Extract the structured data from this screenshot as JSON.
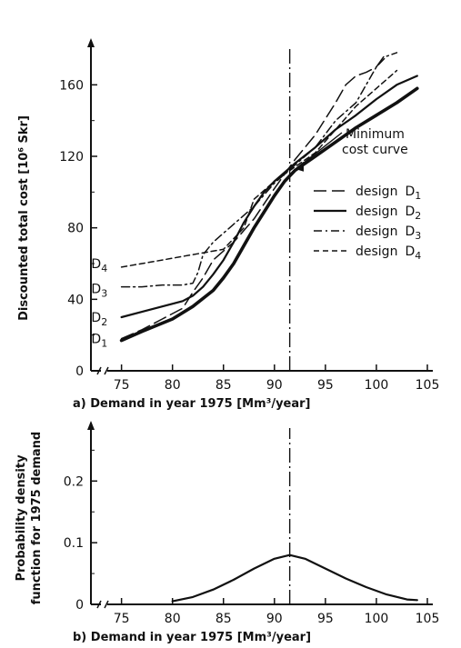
{
  "chart_data": [
    {
      "panel": "a",
      "type": "line",
      "xlabel": "a) Demand in year 1975 [Mm³/year]",
      "ylabel": "Discounted total cost [10⁶ Skr]",
      "xlim": [
        72,
        105
      ],
      "ylim": [
        0,
        180
      ],
      "x_ticks": [
        "75",
        "80",
        "85",
        "90",
        "95",
        "100",
        "105"
      ],
      "y_ticks": [
        "0",
        "40",
        "80",
        "120",
        "160"
      ],
      "axis_break": true,
      "vertical_marker_x": 91.5,
      "annotation": {
        "text_line1": "Minimum",
        "text_line2": "cost curve"
      },
      "legend_position": "right",
      "legend": [
        {
          "label": "design",
          "sub": "D",
          "index": "1",
          "style": "long-dash"
        },
        {
          "label": "design",
          "sub": "D",
          "index": "2",
          "style": "solid"
        },
        {
          "label": "design",
          "sub": "D",
          "index": "3",
          "style": "dash-dot"
        },
        {
          "label": "design",
          "sub": "D",
          "index": "4",
          "style": "short-dash"
        }
      ],
      "curve_labels": [
        {
          "main": "D",
          "sub": "1",
          "series": "D1"
        },
        {
          "main": "D",
          "sub": "2",
          "series": "D2"
        },
        {
          "main": "D",
          "sub": "3",
          "series": "D3"
        },
        {
          "main": "D",
          "sub": "4",
          "series": "D4"
        }
      ],
      "series": [
        {
          "id": "min",
          "style": "bold",
          "points": [
            [
              75,
              17
            ],
            [
              77,
              22
            ],
            [
              80,
              29
            ],
            [
              82,
              36
            ],
            [
              84,
              45
            ],
            [
              85,
              52
            ],
            [
              86,
              60
            ],
            [
              87,
              70
            ],
            [
              88,
              80
            ],
            [
              89,
              89
            ],
            [
              90,
              98
            ],
            [
              91,
              106
            ],
            [
              92,
              112
            ],
            [
              94,
              120
            ],
            [
              96,
              128
            ],
            [
              98,
              136
            ],
            [
              100,
              143
            ],
            [
              102,
              150
            ],
            [
              104,
              158
            ]
          ]
        },
        {
          "id": "D1",
          "style": "long-dash",
          "points": [
            [
              75,
              18
            ],
            [
              77,
              23
            ],
            [
              79,
              29
            ],
            [
              81,
              35
            ],
            [
              82,
              44
            ],
            [
              83,
              52
            ],
            [
              84,
              62
            ],
            [
              86,
              72
            ],
            [
              88,
              85
            ],
            [
              90,
              102
            ],
            [
              92,
              118
            ],
            [
              94,
              132
            ],
            [
              96,
              150
            ],
            [
              97,
              160
            ],
            [
              98,
              165
            ],
            [
              99,
              167
            ],
            [
              100,
              170
            ],
            [
              101,
              178
            ]
          ]
        },
        {
          "id": "D2",
          "style": "solid",
          "points": [
            [
              75,
              30
            ],
            [
              77,
              33
            ],
            [
              79,
              36
            ],
            [
              81,
              39
            ],
            [
              82,
              42
            ],
            [
              83,
              47
            ],
            [
              84,
              54
            ],
            [
              85,
              62
            ],
            [
              86,
              72
            ],
            [
              87,
              83
            ],
            [
              88,
              92
            ],
            [
              89,
              100
            ],
            [
              90,
              106
            ],
            [
              91,
              111
            ],
            [
              92,
              116
            ],
            [
              94,
              125
            ],
            [
              96,
              135
            ],
            [
              98,
              143
            ],
            [
              100,
              152
            ],
            [
              102,
              160
            ],
            [
              104,
              165
            ]
          ]
        },
        {
          "id": "D3",
          "style": "dash-dot",
          "points": [
            [
              75,
              47
            ],
            [
              77,
              47
            ],
            [
              79,
              48
            ],
            [
              81,
              48
            ],
            [
              82,
              49
            ],
            [
              82.5,
              55
            ],
            [
              83,
              65
            ],
            [
              84,
              72
            ],
            [
              86,
              82
            ],
            [
              88,
              92
            ],
            [
              90,
              105
            ],
            [
              92,
              115
            ],
            [
              94,
              125
            ],
            [
              96,
              140
            ],
            [
              98,
              150
            ],
            [
              99,
              160
            ],
            [
              100,
              170
            ],
            [
              101,
              176
            ],
            [
              102,
              178
            ]
          ]
        },
        {
          "id": "D4",
          "style": "short-dash",
          "points": [
            [
              75,
              58
            ],
            [
              77,
              60
            ],
            [
              79,
              62
            ],
            [
              81,
              64
            ],
            [
              83,
              66
            ],
            [
              85,
              68
            ],
            [
              87,
              80
            ],
            [
              88,
              96
            ],
            [
              90,
              106
            ],
            [
              92,
              114
            ],
            [
              94,
              122
            ],
            [
              96,
              135
            ],
            [
              98,
              148
            ],
            [
              100,
              158
            ],
            [
              102,
              168
            ]
          ]
        }
      ]
    },
    {
      "panel": "b",
      "type": "line",
      "xlabel": "b) Demand in year 1975 [Mm³/year]",
      "ylabel_line1": "Probability density",
      "ylabel_line2": "function for 1975 demand",
      "xlim": [
        72,
        105
      ],
      "ylim": [
        0,
        0.28
      ],
      "x_ticks": [
        "75",
        "80",
        "85",
        "90",
        "95",
        "100",
        "105"
      ],
      "y_ticks": [
        "0",
        "0.1",
        "0.2"
      ],
      "axis_break": true,
      "vertical_marker_x": 91.5,
      "series": [
        {
          "id": "pdf",
          "style": "solid",
          "points": [
            [
              80,
              0.005
            ],
            [
              82,
              0.012
            ],
            [
              84,
              0.024
            ],
            [
              86,
              0.04
            ],
            [
              88,
              0.058
            ],
            [
              90,
              0.074
            ],
            [
              91.5,
              0.08
            ],
            [
              93,
              0.074
            ],
            [
              95,
              0.058
            ],
            [
              97,
              0.042
            ],
            [
              99,
              0.028
            ],
            [
              101,
              0.016
            ],
            [
              103,
              0.008
            ],
            [
              104,
              0.007
            ]
          ]
        }
      ]
    }
  ]
}
